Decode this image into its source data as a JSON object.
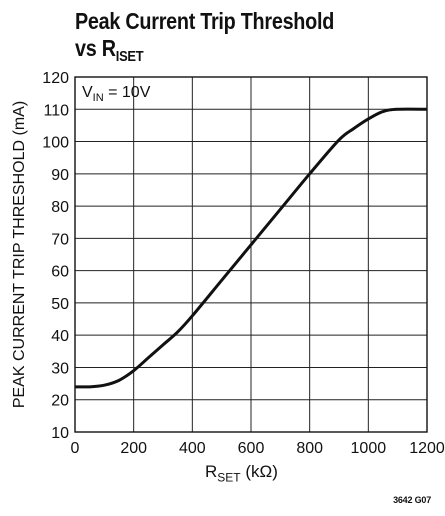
{
  "chart_data": {
    "type": "line",
    "title_line1": "Peak Current Trip Threshold",
    "title_line2_prefix": "vs R",
    "title_line2_sub": "ISET",
    "ylabel": "PEAK CURRENT TRIP THRESHOLD (mA)",
    "xlabel_main": "R",
    "xlabel_sub": "SET",
    "xlabel_unit": " (kΩ)",
    "annotation_main": "V",
    "annotation_sub": "IN",
    "annotation_value": " = 10V",
    "figure_id": "3642 G07",
    "xlim": [
      0,
      1200
    ],
    "ylim": [
      10,
      120
    ],
    "x_ticks": [
      0,
      200,
      400,
      600,
      800,
      1000,
      1200
    ],
    "y_ticks": [
      10,
      20,
      30,
      40,
      50,
      60,
      70,
      80,
      90,
      100,
      110,
      120
    ],
    "grid": true,
    "series": [
      {
        "x": [
          0,
          50,
          100,
          150,
          200,
          250,
          300,
          350,
          400,
          500,
          600,
          700,
          800,
          900,
          950,
          1000,
          1050,
          1100,
          1200
        ],
        "y": [
          24,
          24,
          24.5,
          26,
          29,
          33,
          37,
          41,
          46,
          57,
          68,
          79,
          90,
          100.5,
          104,
          107,
          109.3,
          110,
          110
        ]
      }
    ]
  }
}
